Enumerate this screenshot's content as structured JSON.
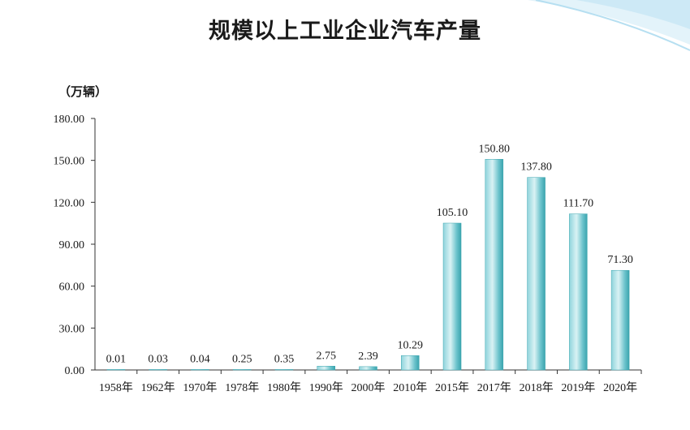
{
  "chart_data": {
    "type": "bar",
    "title": "规模以上工业企业汽车产量",
    "ylabel": "（万辆）",
    "categories": [
      "1958年",
      "1962年",
      "1970年",
      "1978年",
      "1980年",
      "1990年",
      "2000年",
      "2010年",
      "2015年",
      "2017年",
      "2018年",
      "2019年",
      "2020年"
    ],
    "values": [
      0.01,
      0.03,
      0.04,
      0.25,
      0.35,
      2.75,
      2.39,
      10.29,
      105.1,
      150.8,
      137.8,
      111.7,
      71.3
    ],
    "value_labels": [
      "0.01",
      "0.03",
      "0.04",
      "0.25",
      "0.35",
      "2.75",
      "2.39",
      "10.29",
      "105.10",
      "150.80",
      "137.80",
      "111.70",
      "71.30"
    ],
    "yticks": [
      "0.00",
      "30.00",
      "60.00",
      "90.00",
      "120.00",
      "150.00",
      "180.00"
    ],
    "ylim": [
      0,
      180
    ],
    "grid": false,
    "colors": {
      "bar_light": "#bfe6ea",
      "bar_mid": "#6cc3cc",
      "bar_dark": "#2f9aa6",
      "axis": "#333333"
    }
  }
}
